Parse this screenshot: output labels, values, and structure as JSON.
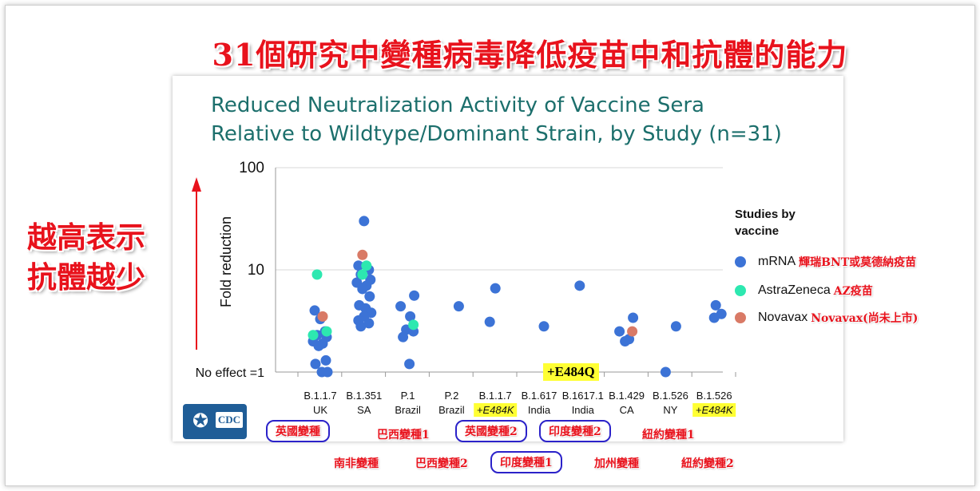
{
  "headline": "31個研究中變種病毒降低疫苗中和抗體的能力",
  "side_note": [
    "越高表示",
    "抗體越少"
  ],
  "chart_data": {
    "type": "scatter",
    "title": [
      "Reduced Neutralization Activity of Vaccine Sera",
      "Relative to Wildtype/Dominant Strain, by Study (n=31)"
    ],
    "ylabel": "Fold reduction",
    "yscale": "log",
    "ylim": [
      1,
      100
    ],
    "yticks": [
      "100",
      "10",
      "No effect =1"
    ],
    "grid": "horizontal",
    "legend_placement": "right",
    "legend_title": "Studies by vaccine",
    "categories": [
      {
        "line1": "B.1.1.7",
        "line2": "UK",
        "highlight": false
      },
      {
        "line1": "B.1.351",
        "line2": "SA",
        "highlight": false
      },
      {
        "line1": "P.1",
        "line2": "Brazil",
        "highlight": false
      },
      {
        "line1": "P.2",
        "line2": "Brazil",
        "highlight": false
      },
      {
        "line1": "B.1.1.7",
        "line2": "+E484K",
        "highlight": true
      },
      {
        "line1": "B.1.617",
        "line2": "India",
        "highlight": false
      },
      {
        "line1": "B.1617.1",
        "line2": "India",
        "highlight": false
      },
      {
        "line1": "B.1.429",
        "line2": "CA",
        "highlight": false
      },
      {
        "line1": "B.1.526",
        "line2": "NY",
        "highlight": false
      },
      {
        "line1": "B.1.526",
        "line2": "+E484K",
        "highlight": true
      }
    ],
    "series": [
      {
        "name": "mRNA",
        "note": "輝瑞BNT或莫德納疫苗",
        "color": "#3c73d6",
        "points": [
          [
            0,
            3.3
          ],
          [
            0,
            4.0
          ],
          [
            0,
            2.5
          ],
          [
            0,
            2.3
          ],
          [
            0,
            2.2
          ],
          [
            0,
            2.0
          ],
          [
            0,
            1.9
          ],
          [
            0,
            1.8
          ],
          [
            0,
            1.3
          ],
          [
            0,
            1.2
          ],
          [
            0,
            1.0
          ],
          [
            0,
            1.0
          ],
          [
            1,
            30
          ],
          [
            1,
            11
          ],
          [
            1,
            10
          ],
          [
            1,
            9
          ],
          [
            1,
            8
          ],
          [
            1,
            7.5
          ],
          [
            1,
            7
          ],
          [
            1,
            6.5
          ],
          [
            1,
            5.5
          ],
          [
            1,
            4.5
          ],
          [
            1,
            4.2
          ],
          [
            1,
            3.8
          ],
          [
            1,
            3.5
          ],
          [
            1,
            3.2
          ],
          [
            1,
            3.0
          ],
          [
            1,
            2.8
          ],
          [
            2,
            5.6
          ],
          [
            2,
            4.4
          ],
          [
            2,
            3.5
          ],
          [
            2,
            2.6
          ],
          [
            2,
            2.5
          ],
          [
            2,
            2.2
          ],
          [
            2,
            1.2
          ],
          [
            3,
            4.4
          ],
          [
            4,
            6.6
          ],
          [
            4,
            3.1
          ],
          [
            5,
            2.8
          ],
          [
            6,
            7.0
          ],
          [
            7,
            3.4
          ],
          [
            7,
            2.5
          ],
          [
            7,
            2.1
          ],
          [
            7,
            2.0
          ],
          [
            8,
            2.8
          ],
          [
            8,
            1.0
          ],
          [
            9,
            4.5
          ],
          [
            9,
            3.7
          ],
          [
            9,
            3.4
          ]
        ]
      },
      {
        "name": "AstraZeneca",
        "note": "AZ疫苗",
        "color": "#2de8b0",
        "points": [
          [
            0,
            9.0
          ],
          [
            0,
            2.5
          ],
          [
            0,
            2.3
          ],
          [
            1,
            11
          ],
          [
            1,
            9.0
          ],
          [
            2,
            2.9
          ]
        ]
      },
      {
        "name": "Novavax",
        "note": "Novavax(尚未上市)",
        "color": "#d97a66",
        "points": [
          [
            0,
            3.5
          ],
          [
            1,
            14
          ],
          [
            7,
            2.5
          ]
        ]
      }
    ],
    "annotation": "+E484Q"
  },
  "zh_labels": {
    "uk": "英國變種",
    "sa": "南非變種",
    "br1": "巴西變種1",
    "br2": "巴西變種2",
    "uk2": "英國變種2",
    "in1": "印度變種1",
    "in2": "印度變種2",
    "ca": "加州變種",
    "ny1": "紐約變種1",
    "ny2": "紐約變種2"
  },
  "logo": {
    "label": "CDC"
  },
  "colors": {
    "headline": "#e8121c",
    "title": "#1c6f6c",
    "box_border": "#2b22c9",
    "highlight": "#ffff33"
  }
}
